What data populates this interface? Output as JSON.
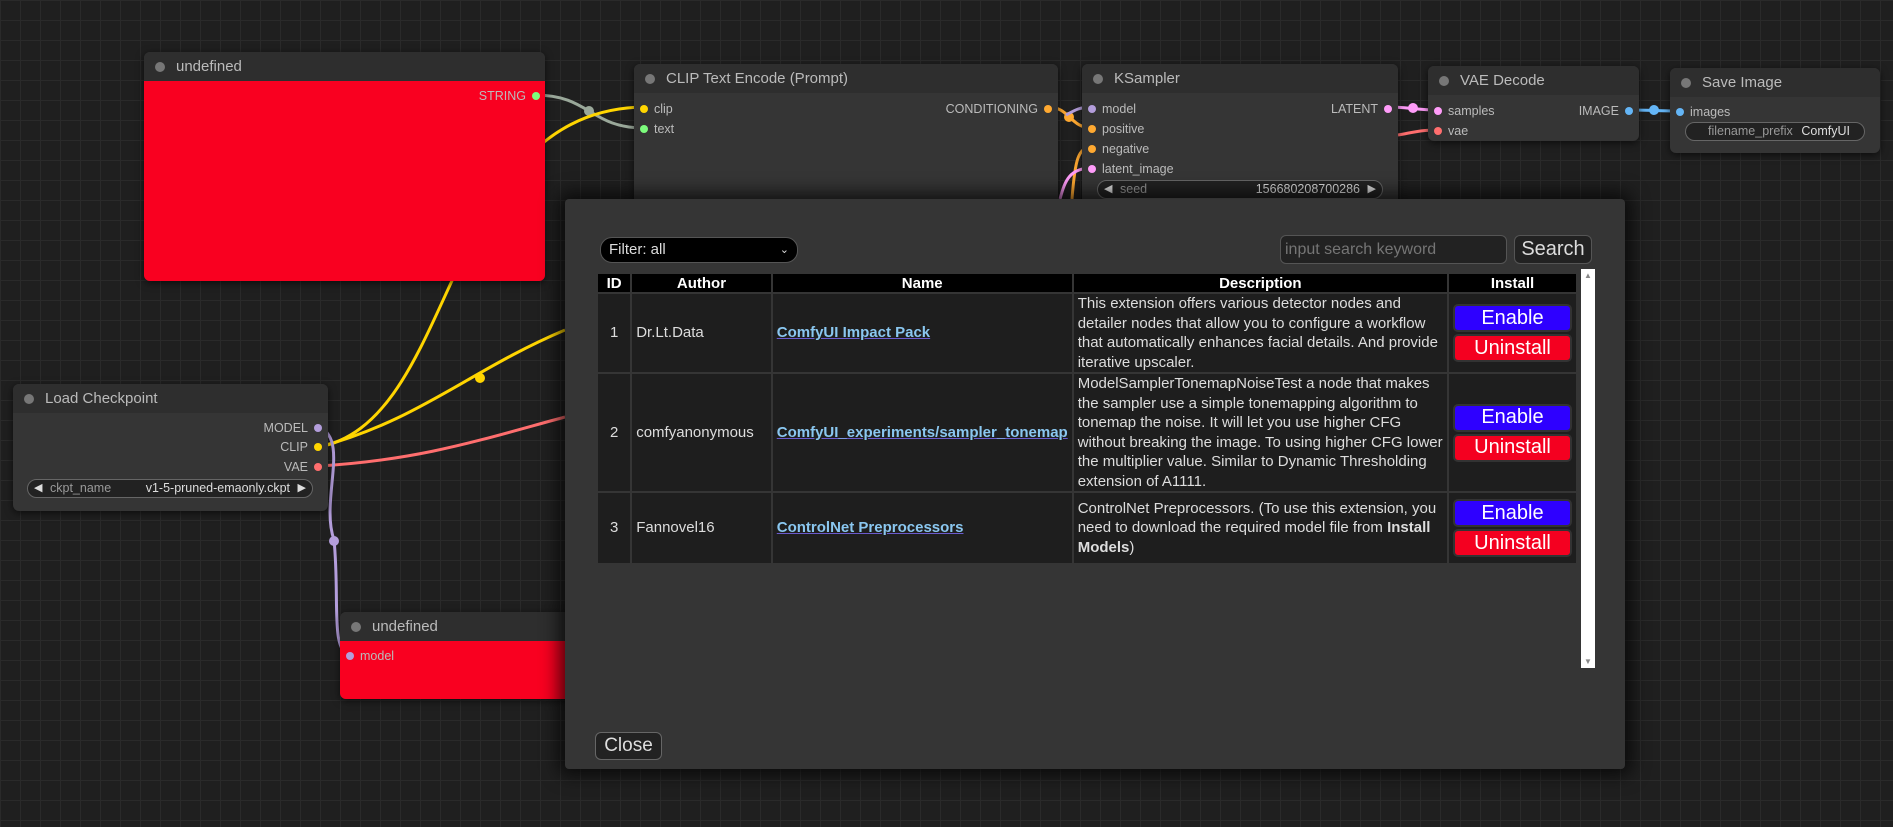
{
  "nodes": {
    "undefined_top": {
      "title": "undefined",
      "output": "STRING"
    },
    "clip_encode": {
      "title": "CLIP Text Encode (Prompt)",
      "inputs": [
        "clip",
        "text"
      ],
      "output": "CONDITIONING"
    },
    "ksampler": {
      "title": "KSampler",
      "inputs": [
        "model",
        "positive",
        "negative",
        "latent_image"
      ],
      "output": "LATENT",
      "seed_label": "seed",
      "seed_value": "156680208700286"
    },
    "vae_decode": {
      "title": "VAE Decode",
      "inputs": [
        "samples",
        "vae"
      ],
      "output": "IMAGE"
    },
    "save_image": {
      "title": "Save Image",
      "input": "images",
      "prefix_label": "filename_prefix",
      "prefix_value": "ComfyUI"
    },
    "load_checkpoint": {
      "title": "Load Checkpoint",
      "outputs": [
        "MODEL",
        "CLIP",
        "VAE"
      ],
      "ckpt_label": "ckpt_name",
      "ckpt_value": "v1-5-pruned-emaonly.ckpt"
    },
    "undefined_bottom": {
      "title": "undefined",
      "input": "model"
    }
  },
  "colors": {
    "clip": "#ffd500",
    "model": "#b39ddb",
    "vae": "#ff6e6e",
    "conditioning": "#ffa931",
    "latent": "#ff9cf9",
    "image": "#64b5f6",
    "string": "#7cfc7c",
    "red_node": "#f90020",
    "enable": "#2e00ff",
    "uninstall": "#f40020"
  },
  "dialog": {
    "filter": "Filter: all",
    "search_placeholder": "input search keyword",
    "search_label": "Search",
    "close_label": "Close",
    "columns": [
      "ID",
      "Author",
      "Name",
      "Description",
      "Install"
    ],
    "rows": [
      {
        "id": "1",
        "author": "Dr.Lt.Data",
        "name": "ComfyUI Impact Pack",
        "description": "This extension offers various detector nodes and detailer nodes that allow you to configure a workflow that automatically enhances facial details. And provide iterative upscaler.",
        "enable": "Enable",
        "uninstall": "Uninstall"
      },
      {
        "id": "2",
        "author": "comfyanonymous",
        "name": "ComfyUI_experiments/sampler_tonemap",
        "description": "ModelSamplerTonemapNoiseTest a node that makes the sampler use a simple tonemapping algorithm to tonemap the noise. It will let you use higher CFG without breaking the image. To using higher CFG lower the multiplier value. Similar to Dynamic Thresholding extension of A1111.",
        "enable": "Enable",
        "uninstall": "Uninstall"
      },
      {
        "id": "3",
        "author": "Fannovel16",
        "name": "ControlNet Preprocessors",
        "description_pre": "ControlNet Preprocessors. (To use this extension, you need to download the required model file from ",
        "description_bold": "Install Models",
        "description_post": ")",
        "enable": "Enable",
        "uninstall": "Uninstall"
      }
    ]
  }
}
